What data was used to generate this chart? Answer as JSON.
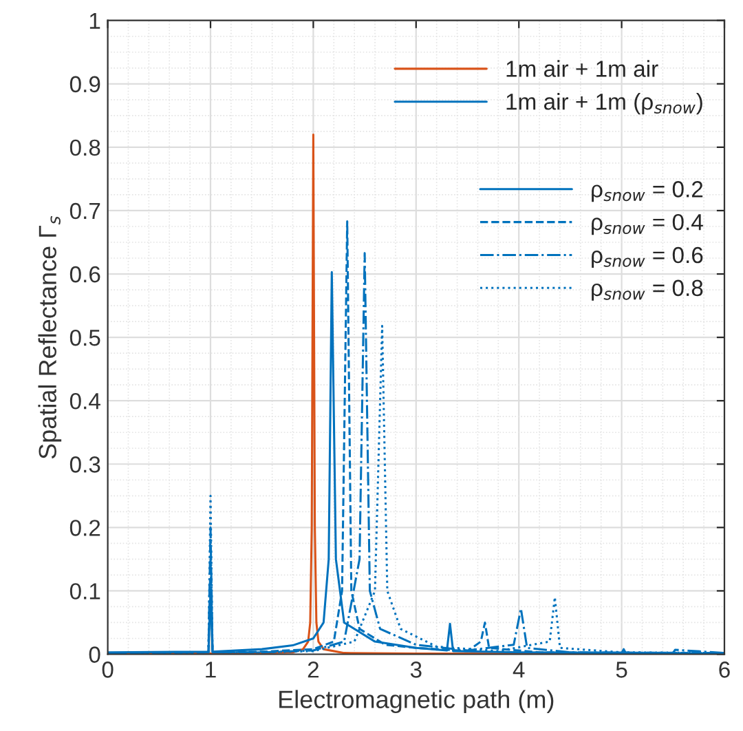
{
  "chart_data": {
    "type": "line",
    "xlabel": "Electromagnetic path (m)",
    "ylabel": "Spatial Reflectance Γ$_{s}$",
    "xlim": [
      0,
      6
    ],
    "ylim": [
      0,
      1
    ],
    "xticks": [
      0,
      1,
      2,
      3,
      4,
      5,
      6
    ],
    "yticks": [
      0,
      0.1,
      0.2,
      0.3,
      0.4,
      0.5,
      0.6,
      0.7,
      0.8,
      0.9,
      1
    ],
    "grid": true,
    "legend": "top right",
    "legend_title": "1m air + 1m (ρ$_{snow}$)",
    "series": [
      {
        "name": "1m air + 1m air",
        "color": "#d95319",
        "line_style": "solid",
        "x": [
          0,
          1,
          1.5,
          1.8,
          1.9,
          1.95,
          1.97,
          1.985,
          2.0,
          2.015,
          2.03,
          2.05,
          2.1,
          2.3,
          3,
          6
        ],
        "values": [
          0.001,
          0.001,
          0.002,
          0.003,
          0.008,
          0.02,
          0.05,
          0.2,
          0.82,
          0.2,
          0.05,
          0.02,
          0.008,
          0.002,
          0.001,
          0.0
        ]
      },
      {
        "name": "ρ$_{snow}$ = 0.2",
        "color": "#0072bd",
        "line_style": "solid",
        "x": [
          0,
          0.98,
          1.0,
          1.02,
          1.5,
          1.8,
          2.0,
          2.1,
          2.15,
          2.18,
          2.22,
          2.3,
          2.6,
          3.0,
          3.3,
          3.33,
          3.36,
          4.0,
          5.0,
          5.02,
          5.04,
          6
        ],
        "values": [
          0.003,
          0.004,
          0.1,
          0.004,
          0.008,
          0.014,
          0.025,
          0.05,
          0.15,
          0.603,
          0.15,
          0.05,
          0.02,
          0.01,
          0.006,
          0.048,
          0.005,
          0.003,
          0.002,
          0.008,
          0.002,
          0.001
        ]
      },
      {
        "name": "ρ$_{snow}$ = 0.4",
        "color": "#0072bd",
        "line_style": "dashed",
        "x": [
          0,
          0.98,
          1.0,
          1.02,
          1.5,
          2.0,
          2.2,
          2.28,
          2.33,
          2.37,
          2.45,
          2.7,
          3.0,
          3.5,
          3.63,
          3.67,
          3.71,
          4.2,
          6
        ],
        "values": [
          0.002,
          0.003,
          0.15,
          0.003,
          0.004,
          0.008,
          0.02,
          0.1,
          0.683,
          0.1,
          0.04,
          0.015,
          0.01,
          0.005,
          0.02,
          0.05,
          0.01,
          0.003,
          0.002
        ]
      },
      {
        "name": "ρ$_{snow}$ = 0.6",
        "color": "#0072bd",
        "line_style": "dashdot",
        "x": [
          0,
          0.98,
          1.0,
          1.02,
          1.5,
          2.0,
          2.3,
          2.45,
          2.5,
          2.55,
          2.65,
          3.0,
          3.5,
          3.95,
          4.02,
          4.08,
          4.5,
          5.5,
          5.52,
          6
        ],
        "values": [
          0.002,
          0.003,
          0.2,
          0.003,
          0.003,
          0.006,
          0.02,
          0.15,
          0.633,
          0.1,
          0.04,
          0.015,
          0.006,
          0.015,
          0.072,
          0.01,
          0.003,
          0.002,
          0.007,
          0.002
        ]
      },
      {
        "name": "ρ$_{snow}$ = 0.8",
        "color": "#0072bd",
        "line_style": "dotted",
        "x": [
          0,
          0.98,
          1.0,
          1.02,
          1.5,
          2.0,
          2.4,
          2.6,
          2.67,
          2.72,
          2.85,
          3.2,
          3.8,
          4.3,
          4.35,
          4.4,
          5,
          6
        ],
        "values": [
          0.002,
          0.003,
          0.25,
          0.003,
          0.003,
          0.005,
          0.02,
          0.1,
          0.518,
          0.1,
          0.04,
          0.012,
          0.005,
          0.02,
          0.09,
          0.01,
          0.003,
          0.002
        ]
      }
    ]
  }
}
